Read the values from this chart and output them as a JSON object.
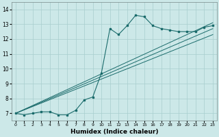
{
  "xlabel": "Humidex (Indice chaleur)",
  "ylabel": "",
  "xlim": [
    -0.5,
    23.5
  ],
  "ylim": [
    6.5,
    14.5
  ],
  "xticks": [
    0,
    1,
    2,
    3,
    4,
    5,
    6,
    7,
    8,
    9,
    10,
    11,
    12,
    13,
    14,
    15,
    16,
    17,
    18,
    19,
    20,
    21,
    22,
    23
  ],
  "yticks": [
    7,
    8,
    9,
    10,
    11,
    12,
    13,
    14
  ],
  "bg_color": "#cce8e8",
  "line_color": "#1a6b6b",
  "main_x": [
    0,
    1,
    2,
    3,
    4,
    5,
    6,
    7,
    8,
    9,
    10,
    11,
    12,
    13,
    14,
    15,
    16,
    17,
    18,
    19,
    20,
    21,
    22,
    23
  ],
  "main_y": [
    7.0,
    6.9,
    7.0,
    7.1,
    7.1,
    6.9,
    6.9,
    7.2,
    7.9,
    8.1,
    9.7,
    12.7,
    12.3,
    12.9,
    13.6,
    13.5,
    12.9,
    12.7,
    12.6,
    12.5,
    12.5,
    12.5,
    12.8,
    12.9
  ],
  "line2_x": [
    0,
    23
  ],
  "line2_y": [
    7.0,
    13.1
  ],
  "line3_x": [
    0,
    23
  ],
  "line3_y": [
    7.0,
    12.7
  ],
  "line4_x": [
    0,
    23
  ],
  "line4_y": [
    7.0,
    12.3
  ]
}
